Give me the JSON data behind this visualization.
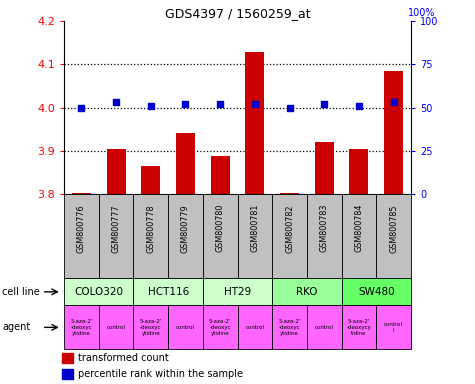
{
  "title": "GDS4397 / 1560259_at",
  "samples": [
    "GSM800776",
    "GSM800777",
    "GSM800778",
    "GSM800779",
    "GSM800780",
    "GSM800781",
    "GSM800782",
    "GSM800783",
    "GSM800784",
    "GSM800785"
  ],
  "bar_values": [
    3.802,
    3.905,
    3.865,
    3.942,
    3.887,
    4.128,
    3.801,
    3.921,
    3.905,
    4.085
  ],
  "dot_values": [
    50,
    53,
    51,
    52,
    52,
    52,
    50,
    52,
    51,
    53
  ],
  "ylim": [
    3.8,
    4.2
  ],
  "y2lim": [
    0,
    100
  ],
  "yticks": [
    3.8,
    3.9,
    4.0,
    4.1,
    4.2
  ],
  "y2ticks": [
    0,
    25,
    50,
    75,
    100
  ],
  "bar_color": "#cc0000",
  "dot_color": "#0000cc",
  "bar_baseline": 3.8,
  "cell_lines": [
    {
      "label": "COLO320",
      "start": 0,
      "end": 2,
      "color": "#ccffcc"
    },
    {
      "label": "HCT116",
      "start": 2,
      "end": 4,
      "color": "#ccffcc"
    },
    {
      "label": "HT29",
      "start": 4,
      "end": 6,
      "color": "#ccffcc"
    },
    {
      "label": "RKO",
      "start": 6,
      "end": 8,
      "color": "#99ff99"
    },
    {
      "label": "SW480",
      "start": 8,
      "end": 10,
      "color": "#66ff66"
    }
  ],
  "agents": [
    {
      "label": "5-aza-2'\n-deoxyc\nytidine",
      "col": 0,
      "color": "#ff66ff"
    },
    {
      "label": "control",
      "col": 1,
      "color": "#ff66ff"
    },
    {
      "label": "5-aza-2'\n-deoxyc\nytidine",
      "col": 2,
      "color": "#ff66ff"
    },
    {
      "label": "control",
      "col": 3,
      "color": "#ff66ff"
    },
    {
      "label": "5-aza-2'\n-deoxyc\nytidine",
      "col": 4,
      "color": "#ff66ff"
    },
    {
      "label": "control",
      "col": 5,
      "color": "#ff66ff"
    },
    {
      "label": "5-aza-2'\n-deoxyc\nytidine",
      "col": 6,
      "color": "#ff66ff"
    },
    {
      "label": "control",
      "col": 7,
      "color": "#ff66ff"
    },
    {
      "label": "5-aza-2'\n-deoxycy\ntidine",
      "col": 8,
      "color": "#ff66ff"
    },
    {
      "label": "control\nl",
      "col": 9,
      "color": "#ff66ff"
    }
  ],
  "legend_bar_label": "transformed count",
  "legend_dot_label": "percentile rank within the sample",
  "cell_line_label": "cell line",
  "agent_label": "agent",
  "bg_color": "#ffffff",
  "sample_bg_color": "#c0c0c0"
}
